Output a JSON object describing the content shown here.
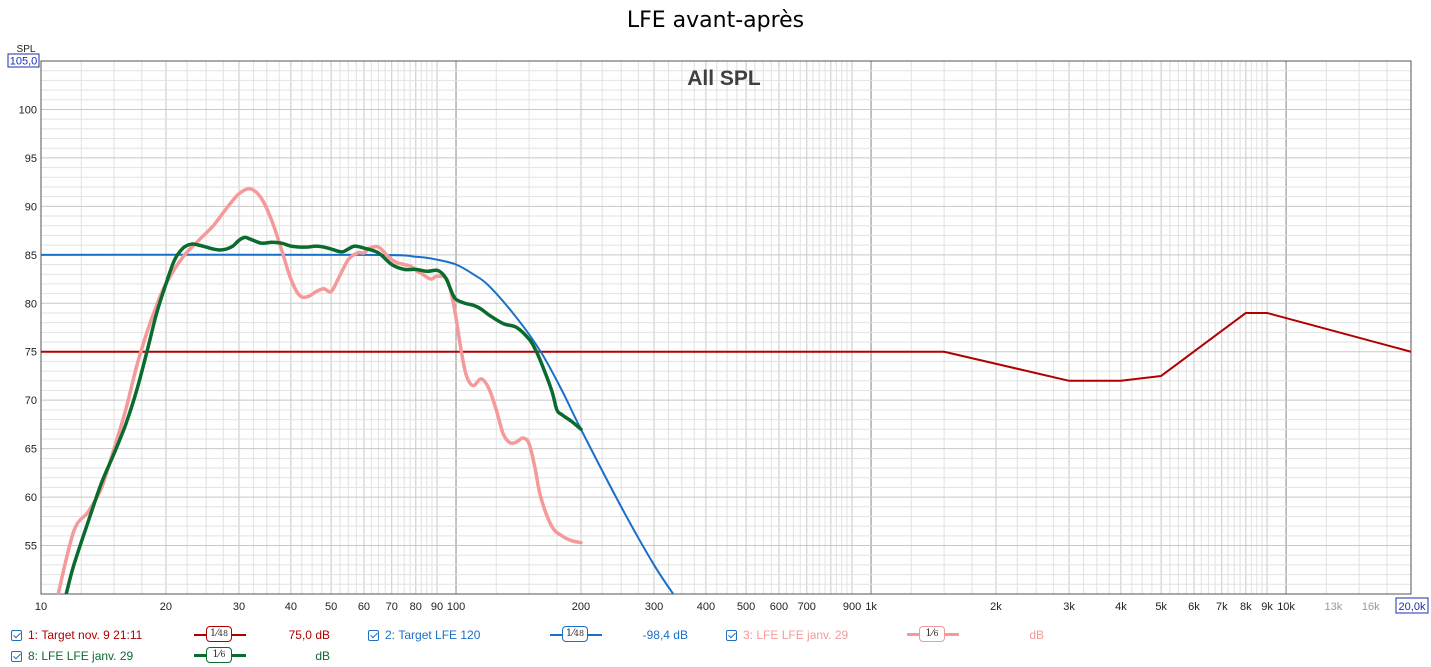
{
  "window": {
    "title": "LFE avant-après"
  },
  "chart_data": {
    "type": "line",
    "title": "LFE avant-après",
    "subtitle": "All SPL",
    "ylabel": "SPL",
    "xscale": "log",
    "xlim": [
      10,
      20000
    ],
    "ylim": [
      50,
      105
    ],
    "grid": true,
    "x_ticks": [
      {
        "v": 10,
        "label": "10"
      },
      {
        "v": 20,
        "label": "20"
      },
      {
        "v": 30,
        "label": "30"
      },
      {
        "v": 40,
        "label": "40"
      },
      {
        "v": 50,
        "label": "50"
      },
      {
        "v": 60,
        "label": "60"
      },
      {
        "v": 70,
        "label": "70"
      },
      {
        "v": 80,
        "label": "80"
      },
      {
        "v": 90,
        "label": "90"
      },
      {
        "v": 100,
        "label": "100"
      },
      {
        "v": 200,
        "label": "200"
      },
      {
        "v": 300,
        "label": "300"
      },
      {
        "v": 400,
        "label": "400"
      },
      {
        "v": 500,
        "label": "500"
      },
      {
        "v": 600,
        "label": "600"
      },
      {
        "v": 700,
        "label": "700"
      },
      {
        "v": 900,
        "label": "900"
      },
      {
        "v": 1000,
        "label": "1k"
      },
      {
        "v": 2000,
        "label": "2k"
      },
      {
        "v": 3000,
        "label": "3k"
      },
      {
        "v": 4000,
        "label": "4k"
      },
      {
        "v": 5000,
        "label": "5k"
      },
      {
        "v": 6000,
        "label": "6k"
      },
      {
        "v": 7000,
        "label": "7k"
      },
      {
        "v": 8000,
        "label": "8k"
      },
      {
        "v": 9000,
        "label": "9k"
      },
      {
        "v": 10000,
        "label": "10k"
      },
      {
        "v": 13000,
        "label": "13k"
      },
      {
        "v": 16000,
        "label": "16k"
      }
    ],
    "x_max_label": "20,0k",
    "y_ticks": [
      {
        "v": 55,
        "label": "55"
      },
      {
        "v": 60,
        "label": "60"
      },
      {
        "v": 65,
        "label": "65"
      },
      {
        "v": 70,
        "label": "70"
      },
      {
        "v": 75,
        "label": "75"
      },
      {
        "v": 80,
        "label": "80"
      },
      {
        "v": 85,
        "label": "85"
      },
      {
        "v": 90,
        "label": "90"
      },
      {
        "v": 95,
        "label": "95"
      },
      {
        "v": 100,
        "label": "100"
      }
    ],
    "y_max_label": "105,0",
    "series": [
      {
        "name": "Target nov. 9 21:11",
        "color": "#b00000",
        "width": 2,
        "points": [
          [
            10,
            75
          ],
          [
            1500,
            75
          ],
          [
            3000,
            72
          ],
          [
            4000,
            72
          ],
          [
            5000,
            72.5
          ],
          [
            8000,
            79
          ],
          [
            9000,
            79
          ],
          [
            20000,
            75
          ]
        ]
      },
      {
        "name": "Target LFE 120",
        "color": "#1a6fc9",
        "width": 2,
        "points": [
          [
            10,
            85
          ],
          [
            60,
            85
          ],
          [
            80,
            84.8
          ],
          [
            90,
            84.5
          ],
          [
            100,
            84
          ],
          [
            110,
            83
          ],
          [
            120,
            81.8
          ],
          [
            140,
            78.5
          ],
          [
            160,
            75
          ],
          [
            180,
            71
          ],
          [
            200,
            67
          ],
          [
            250,
            59
          ],
          [
            300,
            53
          ],
          [
            340,
            49.5
          ]
        ]
      },
      {
        "name": "LFE LFE janv. 29",
        "color": "#f59a9a",
        "width": 3.5,
        "points": [
          [
            11,
            50
          ],
          [
            12,
            56.5
          ],
          [
            13,
            58.5
          ],
          [
            14,
            61
          ],
          [
            15,
            65
          ],
          [
            16,
            69
          ],
          [
            17,
            73.5
          ],
          [
            18,
            77
          ],
          [
            19,
            79.8
          ],
          [
            20,
            82
          ],
          [
            22,
            84.8
          ],
          [
            24,
            86.5
          ],
          [
            26,
            88
          ],
          [
            28,
            89.8
          ],
          [
            30,
            91.3
          ],
          [
            32,
            91.8
          ],
          [
            34,
            90.8
          ],
          [
            36,
            88.5
          ],
          [
            38,
            85.5
          ],
          [
            40,
            82.5
          ],
          [
            42,
            80.8
          ],
          [
            44,
            80.7
          ],
          [
            46,
            81.2
          ],
          [
            48,
            81.5
          ],
          [
            50,
            81.2
          ],
          [
            52,
            82.5
          ],
          [
            55,
            84.5
          ],
          [
            58,
            85.2
          ],
          [
            60,
            85.2
          ],
          [
            62,
            85.7
          ],
          [
            65,
            85.8
          ],
          [
            68,
            85
          ],
          [
            70,
            84.5
          ],
          [
            72,
            84.2
          ],
          [
            75,
            84
          ],
          [
            78,
            83.8
          ],
          [
            80,
            83.4
          ],
          [
            83,
            83
          ],
          [
            87,
            82.5
          ],
          [
            90,
            82.8
          ],
          [
            95,
            82.5
          ],
          [
            98,
            80.5
          ],
          [
            100,
            78.5
          ],
          [
            103,
            75
          ],
          [
            106,
            72.5
          ],
          [
            110,
            71.5
          ],
          [
            115,
            72.2
          ],
          [
            120,
            71.2
          ],
          [
            125,
            69
          ],
          [
            130,
            66.5
          ],
          [
            135,
            65.6
          ],
          [
            140,
            65.7
          ],
          [
            145,
            66.1
          ],
          [
            150,
            65.5
          ],
          [
            155,
            63
          ],
          [
            160,
            60
          ],
          [
            170,
            57
          ],
          [
            180,
            56
          ],
          [
            190,
            55.5
          ],
          [
            200,
            55.3
          ]
        ]
      },
      {
        "name": "LFE LFE janv. 29",
        "color": "#0a6b2e",
        "width": 3.5,
        "points": [
          [
            11.5,
            50
          ],
          [
            12,
            53
          ],
          [
            13,
            57.5
          ],
          [
            14,
            61.5
          ],
          [
            15,
            64.5
          ],
          [
            16,
            67.5
          ],
          [
            17,
            71
          ],
          [
            18,
            75
          ],
          [
            19,
            79
          ],
          [
            20,
            82
          ],
          [
            21,
            84.5
          ],
          [
            22,
            85.7
          ],
          [
            23,
            86.1
          ],
          [
            24,
            86
          ],
          [
            25,
            85.8
          ],
          [
            26,
            85.6
          ],
          [
            27,
            85.5
          ],
          [
            28,
            85.6
          ],
          [
            29,
            85.9
          ],
          [
            30,
            86.5
          ],
          [
            31,
            86.8
          ],
          [
            32,
            86.6
          ],
          [
            34,
            86.2
          ],
          [
            36,
            86.3
          ],
          [
            38,
            86.2
          ],
          [
            40,
            85.9
          ],
          [
            42,
            85.8
          ],
          [
            44,
            85.8
          ],
          [
            46,
            85.9
          ],
          [
            48,
            85.8
          ],
          [
            50,
            85.6
          ],
          [
            53,
            85.3
          ],
          [
            55,
            85.6
          ],
          [
            57,
            85.9
          ],
          [
            60,
            85.7
          ],
          [
            65,
            85.2
          ],
          [
            70,
            84
          ],
          [
            75,
            83.5
          ],
          [
            80,
            83.5
          ],
          [
            85,
            83.3
          ],
          [
            90,
            83.4
          ],
          [
            93,
            83
          ],
          [
            95,
            82.4
          ],
          [
            98,
            81
          ],
          [
            100,
            80.4
          ],
          [
            105,
            80
          ],
          [
            110,
            79.8
          ],
          [
            115,
            79.4
          ],
          [
            120,
            78.8
          ],
          [
            130,
            77.9
          ],
          [
            140,
            77.5
          ],
          [
            150,
            76.3
          ],
          [
            155,
            75.3
          ],
          [
            160,
            74
          ],
          [
            170,
            71
          ],
          [
            175,
            69
          ],
          [
            180,
            68.5
          ],
          [
            190,
            67.8
          ],
          [
            200,
            67
          ]
        ]
      }
    ]
  },
  "legend": {
    "items": [
      {
        "num": "1:",
        "name": "Target nov. 9 21:11",
        "value": "75,0 dB",
        "smooth_num": "1",
        "smooth_den": "48"
      },
      {
        "num": "2:",
        "name": "Target LFE 120",
        "value": "-98,4 dB",
        "smooth_num": "1",
        "smooth_den": "48"
      },
      {
        "num": "3:",
        "name": "LFE LFE janv. 29",
        "value": "dB",
        "smooth_num": "1",
        "smooth_den": "6"
      },
      {
        "num": "8:",
        "name": "LFE LFE janv. 29",
        "value": "dB",
        "smooth_num": "1",
        "smooth_den": "6"
      }
    ]
  }
}
